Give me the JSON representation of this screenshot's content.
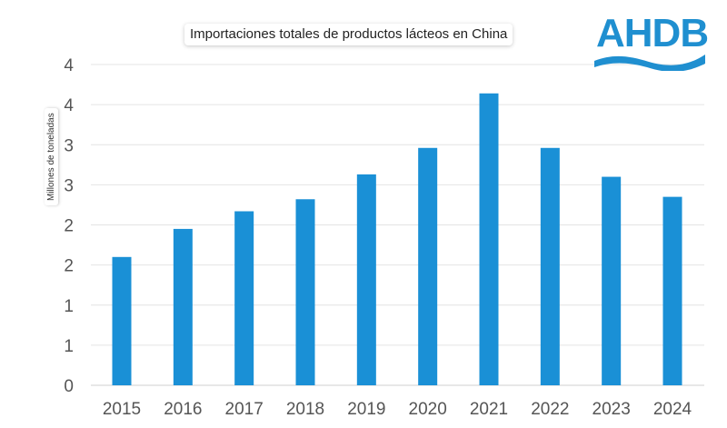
{
  "brand": {
    "logo_text": "AHDB",
    "logo_color": "#1f8fd0",
    "bar_color": "#1a90d6"
  },
  "chart_data": {
    "type": "bar",
    "title": "Importaciones totales de productos lácteos en China",
    "xlabel": "",
    "ylabel": "Millones de toneladas",
    "categories": [
      "2015",
      "2016",
      "2017",
      "2018",
      "2019",
      "2020",
      "2021",
      "2022",
      "2023",
      "2024"
    ],
    "values": [
      1.6,
      1.95,
      2.17,
      2.32,
      2.63,
      2.96,
      3.64,
      2.96,
      2.6,
      2.35
    ],
    "ylim": [
      0,
      4
    ],
    "ytick_values": [
      0,
      0.5,
      1,
      1.5,
      2,
      2.5,
      3,
      3.5,
      4
    ],
    "ytick_labels": [
      "0",
      "1",
      "1",
      "2",
      "2",
      "3",
      "3",
      "4",
      "4"
    ],
    "grid": true,
    "legend": "none"
  }
}
